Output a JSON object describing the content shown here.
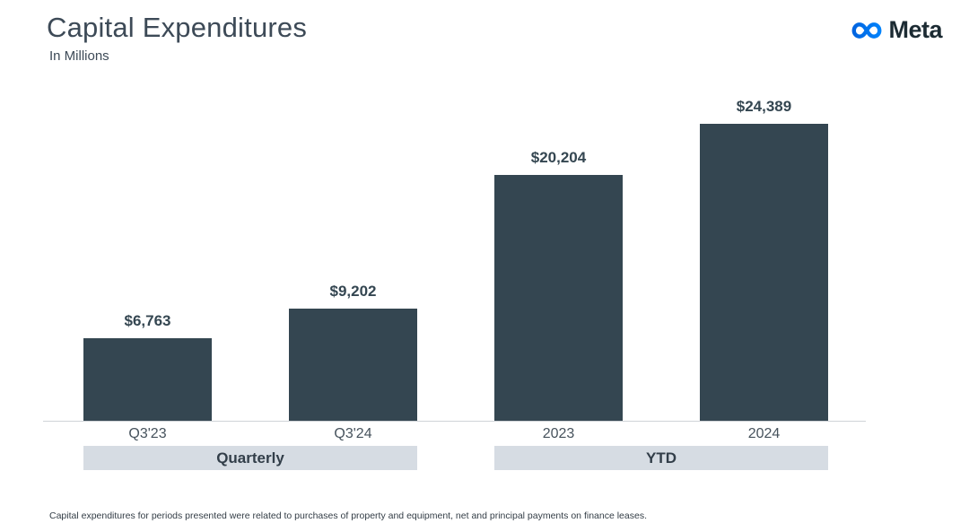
{
  "header": {
    "title": "Capital Expenditures",
    "subtitle": "In Millions",
    "brand": "Meta"
  },
  "chart_data": {
    "type": "bar",
    "title": "Capital Expenditures",
    "unit": "In Millions (USD)",
    "ylim": [
      0,
      24389
    ],
    "grid": false,
    "legend": "none",
    "bar_color": "#344651",
    "groups": [
      {
        "label": "Quarterly",
        "bars": [
          {
            "category": "Q3'23",
            "value": 6763,
            "label": "$6,763"
          },
          {
            "category": "Q3'24",
            "value": 9202,
            "label": "$9,202"
          }
        ]
      },
      {
        "label": "YTD",
        "bars": [
          {
            "category": "2023",
            "value": 20204,
            "label": "$20,204"
          },
          {
            "category": "2024",
            "value": 24389,
            "label": "$24,389"
          }
        ]
      }
    ]
  },
  "footnote": "Capital expenditures for periods presented were related to purchases of property and equipment, net and principal payments on finance leases.",
  "colors": {
    "bar": "#344651",
    "band_background": "#d6dce3",
    "title_text": "#3d4a57",
    "brand_text": "#1c2b33",
    "logo_blue_start": "#0064E0",
    "logo_blue_end": "#0082FB",
    "axis_line": "#cfd3d7"
  }
}
